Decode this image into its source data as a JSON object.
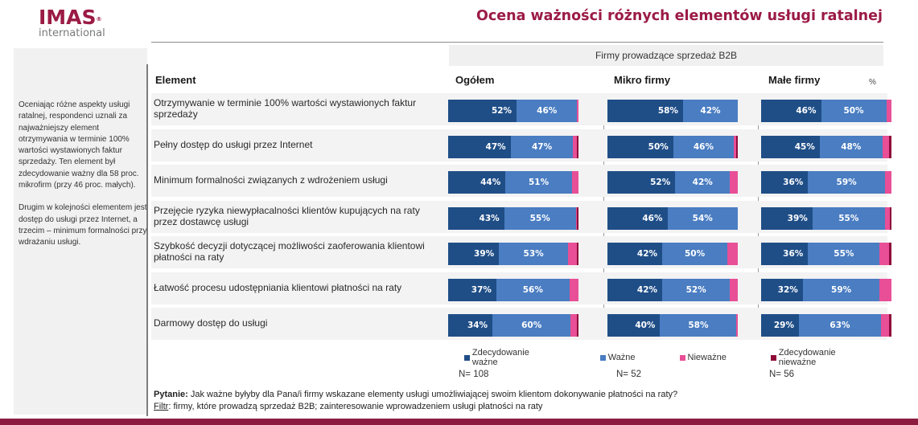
{
  "logo": {
    "main": "IMAS",
    "reg": "®",
    "sub": "international"
  },
  "title": "Ocena ważności różnych elementów usługi ratalnej",
  "left_panel": {
    "paragraphs": [
      "Oceniając różne aspekty usługi ratalnej, respondenci uznali za najważniejszy element otrzymywania w terminie 100% wartości wystawionych faktur sprzedaży. Ten element był zdecydowanie ważny dla 58 proc. mikrofirm (przy 46 proc. małych).",
      "Drugim w kolejności elementem jest dostęp do usługi przez Internet, a trzecim – minimum formalności przy wdrażaniu usługi."
    ]
  },
  "colors": {
    "zdecydowanie_wazne": "#1f4e87",
    "wazne": "#4a7dc2",
    "niewazne": "#e84f96",
    "zdecydowanie_niewazne": "#8f0c3a",
    "brand": "#9b1b45"
  },
  "chart_data": {
    "type": "bar",
    "orientation": "horizontal-stacked-100",
    "title": "Ocena ważności różnych elementów usługi ratalnej",
    "group_header": "Firmy prowadzące sprzedaż B2B",
    "row_header": "Element",
    "unit_label": "%",
    "categories": [
      "Otrzymywanie w terminie 100% wartości wystawionych faktur sprzedaży",
      "Pełny dostęp do usługi przez Internet",
      "Minimum formalności związanych z wdrożeniem usługi",
      "Przejęcie ryzyka niewypłacalności klientów kupujących na raty przez dostawcę usługi",
      "Szybkość decyzji dotyczącej możliwości zaoferowania klientowi płatności na raty",
      "Łatwość procesu udostępniania klientowi płatności na raty",
      "Darmowy dostęp do usługi"
    ],
    "legend": [
      "Zdecydowanie ważne",
      "Ważne",
      "Nieważne",
      "Zdecydowanie nieważne"
    ],
    "legend_position": "bottom",
    "panels": [
      {
        "name": "Ogółem",
        "n": "N= 108",
        "series": [
          {
            "name": "Zdecydowanie ważne",
            "values": [
              52,
              47,
              44,
              43,
              39,
              37,
              34
            ]
          },
          {
            "name": "Ważne",
            "values": [
              46,
              47,
              51,
              55,
              53,
              56,
              60
            ]
          },
          {
            "name": "Nieważne",
            "values": [
              1,
              3,
              5,
              1,
              7,
              7,
              5
            ]
          },
          {
            "name": "Zdecydowanie nieważne",
            "values": [
              0,
              1,
              0,
              1,
              1,
              0,
              1
            ]
          }
        ]
      },
      {
        "name": "Mikro firmy",
        "n": "N= 52",
        "series": [
          {
            "name": "Zdecydowanie ważne",
            "values": [
              58,
              50,
              52,
              46,
              42,
              42,
              40
            ]
          },
          {
            "name": "Ważne",
            "values": [
              42,
              46,
              42,
              54,
              50,
              52,
              58
            ]
          },
          {
            "name": "Nieważne",
            "values": [
              0,
              2,
              6,
              0,
              8,
              6,
              1
            ]
          },
          {
            "name": "Zdecydowanie nieważne",
            "values": [
              0,
              1,
              0,
              0,
              0,
              0,
              0
            ]
          }
        ]
      },
      {
        "name": "Małe firmy",
        "n": "N= 56",
        "series": [
          {
            "name": "Zdecydowanie ważne",
            "values": [
              46,
              45,
              36,
              39,
              36,
              32,
              29
            ]
          },
          {
            "name": "Ważne",
            "values": [
              50,
              48,
              59,
              55,
              55,
              59,
              63
            ]
          },
          {
            "name": "Nieważne",
            "values": [
              4,
              5,
              5,
              4,
              7,
              9,
              6
            ]
          },
          {
            "name": "Zdecydowanie nieważne",
            "values": [
              0,
              2,
              0,
              1,
              2,
              0,
              2
            ]
          }
        ]
      }
    ],
    "labels_shown_for": [
      "Zdecydowanie ważne",
      "Ważne"
    ]
  },
  "footer": {
    "question_label": "Pytanie:",
    "question_text": " Jak ważne byłyby dla Pana/i firmy wskazane elementy usługi umożliwiającej swoim klientom dokonywanie płatności na raty?",
    "filter_label": "Filtr",
    "filter_text": ": firmy, które prowadzą sprzedaż B2B; zainteresowanie wprowadzeniem usługi płatności na raty"
  }
}
